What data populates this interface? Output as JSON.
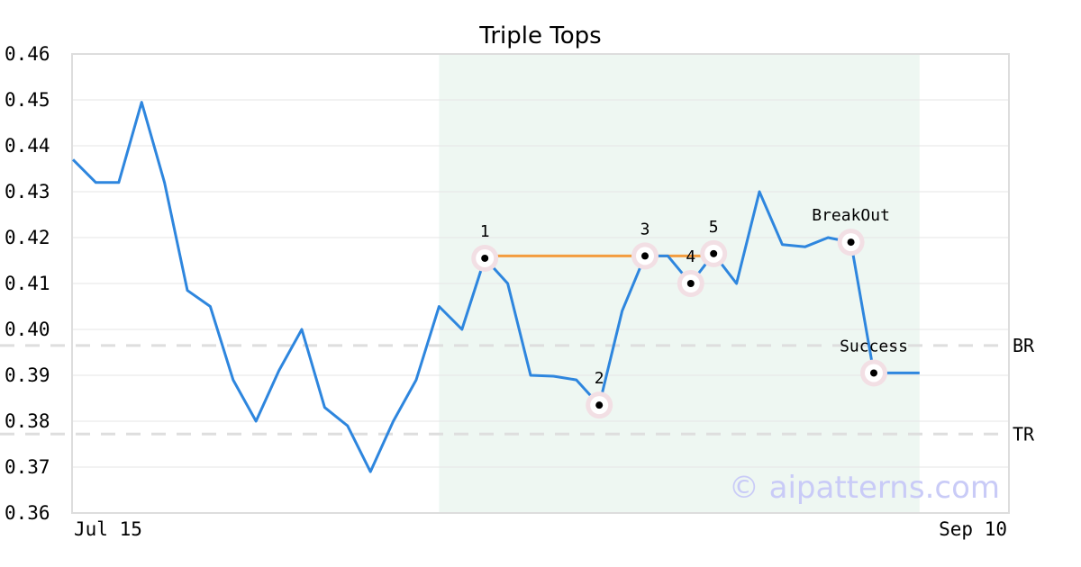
{
  "chart_data": {
    "type": "line",
    "title": "Triple Tops",
    "xlabel": "",
    "ylabel": "",
    "ylim": [
      0.36,
      0.46
    ],
    "yticks": [
      "0.46",
      "0.45",
      "0.44",
      "0.43",
      "0.42",
      "0.41",
      "0.40",
      "0.39",
      "0.38",
      "0.37",
      "0.36"
    ],
    "x_tick_labels": [
      "Jul 15",
      "Sep 10"
    ],
    "grid": "horizontal",
    "series": [
      {
        "color": "#2e86de",
        "values": [
          0.437,
          0.432,
          0.432,
          0.4495,
          0.432,
          0.4085,
          0.405,
          0.389,
          0.38,
          0.391,
          0.4,
          0.383,
          0.379,
          0.369,
          0.38,
          0.389,
          0.405,
          0.4,
          0.4155,
          0.41,
          0.39,
          0.3898,
          0.389,
          0.3835,
          0.404,
          0.416,
          0.416,
          0.41,
          0.4165,
          0.41,
          0.43,
          0.4185,
          0.418,
          0.42,
          0.419,
          0.3905,
          0.3905,
          0.3905
        ]
      }
    ],
    "highlight_region": {
      "start_index": 16,
      "end_index": 37,
      "color": "#eef7f2"
    },
    "resistance_line": {
      "start_index": 18,
      "end_index": 28,
      "value": 0.416,
      "color": "#f39c3e"
    },
    "levels": [
      {
        "label": "BR",
        "value": 0.3965
      },
      {
        "label": "TR",
        "value": 0.3772
      }
    ],
    "points": [
      {
        "label": "1",
        "index": 18,
        "value": 0.4155
      },
      {
        "label": "2",
        "index": 23,
        "value": 0.3835
      },
      {
        "label": "3",
        "index": 25,
        "value": 0.416
      },
      {
        "label": "4",
        "index": 27,
        "value": 0.41
      },
      {
        "label": "5",
        "index": 28,
        "value": 0.4165
      },
      {
        "label": "BreakOut",
        "index": 34,
        "value": 0.419
      },
      {
        "label": "Success",
        "index": 35,
        "value": 0.3905
      }
    ],
    "watermark": "© aipatterns.com"
  }
}
